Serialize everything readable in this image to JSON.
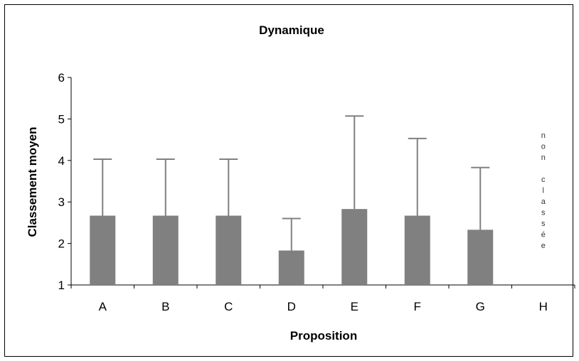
{
  "chart_data": {
    "type": "bar",
    "title": "Dynamique",
    "xlabel": "Proposition",
    "ylabel": "Classement moyen",
    "categories": [
      "A",
      "B",
      "C",
      "D",
      "E",
      "F",
      "G",
      "H"
    ],
    "series": [
      {
        "values": [
          2.67,
          2.67,
          2.67,
          1.83,
          2.83,
          2.67,
          2.33,
          null
        ],
        "error_upper": [
          4.03,
          4.03,
          4.03,
          2.6,
          5.07,
          4.53,
          3.83,
          null
        ]
      }
    ],
    "ylim": [
      1,
      6
    ],
    "yticks": [
      1,
      2,
      3,
      4,
      5,
      6
    ],
    "bar_color": "#808080",
    "error_bar_color": "#808080",
    "grid": false,
    "legend": "none",
    "annotation": {
      "category": "H",
      "text": "non classée"
    }
  }
}
